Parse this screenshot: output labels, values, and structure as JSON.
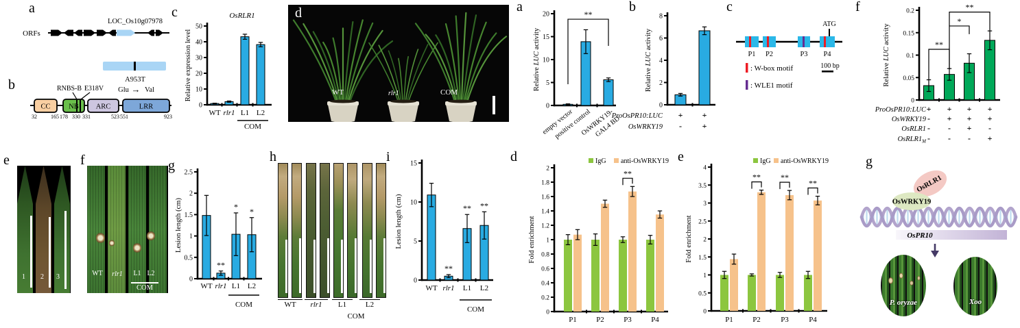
{
  "labels": {
    "a": "a",
    "b": "b",
    "c": "c",
    "d": "d",
    "e": "e",
    "f": "f",
    "g": "g",
    "h": "h",
    "i": "i"
  },
  "gene_panel": {
    "orfs": "ORFs",
    "gene": "LOC_Os10g07978",
    "mutation": "A953T",
    "aa_from": "Glu",
    "aa_to": "Val",
    "arrow": "→",
    "gene_color": "#a9d5f5"
  },
  "domain_panel": {
    "site": "RNBS-B",
    "variant": "E318V",
    "domains": [
      {
        "name": "CC",
        "color": "#f9cfa2"
      },
      {
        "name": "NB",
        "color": "#6abf4b"
      },
      {
        "name": "ARC",
        "color": "#cdc6e0"
      },
      {
        "name": "LRR",
        "color": "#7da7d9"
      }
    ],
    "positions": [
      "32",
      "165",
      "178",
      "330",
      "331",
      "523",
      "551",
      "923"
    ]
  },
  "photo_d": {
    "labels": [
      "WT",
      "rlr1",
      "COM"
    ]
  },
  "photo_e": {
    "labels": [
      "1",
      "2",
      "3"
    ]
  },
  "photo_f": {
    "labels": [
      "WT",
      "rlr1",
      "L1",
      "L2"
    ],
    "group": "COM"
  },
  "photo_h": {
    "labels": [
      "WT",
      "rlr1",
      "L1",
      "L2"
    ],
    "group": "COM"
  },
  "promoter_panel": {
    "sites": [
      "P1",
      "P2",
      "P3",
      "P4"
    ],
    "atg": "ATG",
    "scale": "100 bp",
    "box_color": "#2bb8e8",
    "legend": [
      {
        "color": "#ed1c24",
        "label": ": W-box motif"
      },
      {
        "color": "#662d91",
        "label": ": WLE1 motif"
      }
    ]
  },
  "model_panel": {
    "protein_top": "OsRLR1",
    "protein_bottom": "OsWRKY19",
    "target_gene": "OsPR10",
    "pathogens": [
      "P. oryzae",
      "Xoo"
    ]
  },
  "chart_data": [
    {
      "id": "c",
      "type": "bar",
      "title": "OsRLR1",
      "ylabel": "Relative expression level",
      "ylim": [
        0,
        50
      ],
      "yticks": [
        "0",
        "10",
        "20",
        "30",
        "40",
        "50"
      ],
      "categories": [
        "WT",
        "rlr1",
        "L1",
        "L2"
      ],
      "italic": [
        false,
        true,
        false,
        false
      ],
      "values": [
        0.8,
        2,
        43.2,
        38.2
      ],
      "errors": [
        0.2,
        0.4,
        1.6,
        1.4
      ],
      "sig": [
        "",
        "",
        "",
        ""
      ],
      "group": {
        "label": "COM",
        "span": [
          2,
          3
        ]
      },
      "color": "#29abe2"
    },
    {
      "id": "g",
      "type": "bar",
      "ylabel": "Lesion length (cm)",
      "ylim": [
        0,
        2.5
      ],
      "yticks": [
        "0",
        "0.5",
        "1",
        "1.5",
        "2",
        "2.5"
      ],
      "categories": [
        "WT",
        "rlr1",
        "L1",
        "L2"
      ],
      "italic": [
        false,
        true,
        false,
        false
      ],
      "values": [
        1.48,
        0.13,
        1.04,
        1.03
      ],
      "errors": [
        0.47,
        0.05,
        0.5,
        0.4
      ],
      "sig": [
        "",
        "**",
        "*",
        "*"
      ],
      "group": {
        "label": "COM",
        "span": [
          2,
          3
        ]
      },
      "color": "#29abe2"
    },
    {
      "id": "i",
      "type": "bar",
      "ylabel": "Lesion length (cm)",
      "ylim": [
        0,
        15
      ],
      "yticks": [
        "0",
        "5",
        "10",
        "15"
      ],
      "categories": [
        "WT",
        "rlr1",
        "L1",
        "L2"
      ],
      "italic": [
        false,
        true,
        false,
        false
      ],
      "values": [
        10.9,
        0.5,
        6.6,
        7.0
      ],
      "errors": [
        1.5,
        0.2,
        1.8,
        1.75
      ],
      "sig": [
        "",
        "**",
        "**",
        "**"
      ],
      "group": {
        "label": "COM",
        "span": [
          2,
          3
        ]
      },
      "color": "#29abe2"
    },
    {
      "id": "ra",
      "type": "bar",
      "ylabel": "Relative LUC activity",
      "ylabel_italic": "LUC",
      "ylim": [
        0,
        20
      ],
      "yticks": [
        "0",
        "5",
        "10",
        "15",
        "20"
      ],
      "categories": [
        "empty vector",
        "positive control",
        "OsWRKY19-\nGAL4 BD"
      ],
      "values": [
        0.25,
        13.9,
        5.6
      ],
      "errors": [
        0.1,
        2.6,
        0.4
      ],
      "brackets": [
        {
          "from": 0,
          "to": 2,
          "label": "**",
          "y": 18.8
        }
      ],
      "color": "#29abe2"
    },
    {
      "id": "rb",
      "type": "bar",
      "ylabel": "Relative LUC activity",
      "ylabel_italic": "LUC",
      "ylim": [
        0,
        8
      ],
      "yticks": [
        "0",
        "2",
        "4",
        "6",
        "8"
      ],
      "values": [
        0.9,
        6.65
      ],
      "errors": [
        0.12,
        0.35
      ],
      "rows": [
        {
          "label": "ProOsPR10:LUC",
          "italic": true,
          "values": [
            "+",
            "+"
          ]
        },
        {
          "label": "OsWRKY19",
          "italic": true,
          "values": [
            "-",
            "+"
          ]
        }
      ],
      "color": "#29abe2"
    },
    {
      "id": "rf",
      "type": "bar",
      "ylabel": "Relative LUC activity",
      "ylabel_italic": "LUC",
      "ylim": [
        0,
        0.2
      ],
      "yticks": [
        "0",
        "0.05",
        "0.1",
        "0.15",
        "0.2"
      ],
      "values": [
        0.032,
        0.057,
        0.082,
        0.133
      ],
      "errors": [
        0.013,
        0.013,
        0.021,
        0.021
      ],
      "brackets": [
        {
          "from": 0,
          "to": 1,
          "label": "**",
          "y": 0.113
        },
        {
          "from": 1,
          "to": 2,
          "label": "*",
          "y": 0.165
        },
        {
          "from": 1,
          "to": 3,
          "label": "**",
          "y": 0.196
        }
      ],
      "rows": [
        {
          "label": "ProOsPR10:LUC",
          "italic": true,
          "values": [
            "+",
            "+",
            "+",
            "+"
          ]
        },
        {
          "label": "OsWRKY19",
          "italic": true,
          "values": [
            "-",
            "+",
            "+",
            "+"
          ]
        },
        {
          "label": "OsRLR1",
          "italic": true,
          "values": [
            "-",
            "-",
            "+",
            "-"
          ]
        },
        {
          "label": "OsRLR1",
          "sub": "M",
          "italic": true,
          "values": [
            "-",
            "-",
            "-",
            "+"
          ]
        }
      ],
      "color": "#00a859"
    },
    {
      "id": "rd",
      "type": "grouped_bar",
      "ylabel": "Fold enrichment",
      "ylim": [
        0,
        2
      ],
      "yticks": [
        "0",
        "0.2",
        "0.4",
        "0.6",
        "0.8",
        "1",
        "1.2",
        "1.4",
        "1.6",
        "1.8",
        "2"
      ],
      "categories": [
        "P1",
        "P2",
        "P3",
        "P4"
      ],
      "series": [
        {
          "name": "IgG",
          "color": "#8cc63f",
          "values": [
            1,
            1,
            1,
            1
          ],
          "errors": [
            0.07,
            0.08,
            0.04,
            0.06
          ]
        },
        {
          "name": "anti-OsWRKY19",
          "color": "#f6c28b",
          "values": [
            1.07,
            1.5,
            1.67,
            1.35
          ],
          "errors": [
            0.07,
            0.05,
            0.07,
            0.05
          ]
        }
      ],
      "pair_sig": [
        "",
        "",
        "**",
        ""
      ]
    },
    {
      "id": "re",
      "type": "grouped_bar",
      "ylabel": "Fold enrichment",
      "ylim": [
        0,
        4
      ],
      "yticks": [
        "0",
        "0.5",
        "1",
        "1.5",
        "2",
        "2.5",
        "3",
        "3.5",
        "4"
      ],
      "categories": [
        "P1",
        "P2",
        "P3",
        "P4"
      ],
      "series": [
        {
          "name": "IgG",
          "color": "#8cc63f",
          "values": [
            1,
            1,
            1,
            1
          ],
          "errors": [
            0.1,
            0.03,
            0.07,
            0.1
          ]
        },
        {
          "name": "anti-OsWRKY19",
          "color": "#f6c28b",
          "values": [
            1.44,
            3.3,
            3.22,
            3.07
          ],
          "errors": [
            0.14,
            0.06,
            0.13,
            0.12
          ]
        }
      ],
      "pair_sig": [
        "",
        "**",
        "**",
        "**"
      ]
    }
  ]
}
